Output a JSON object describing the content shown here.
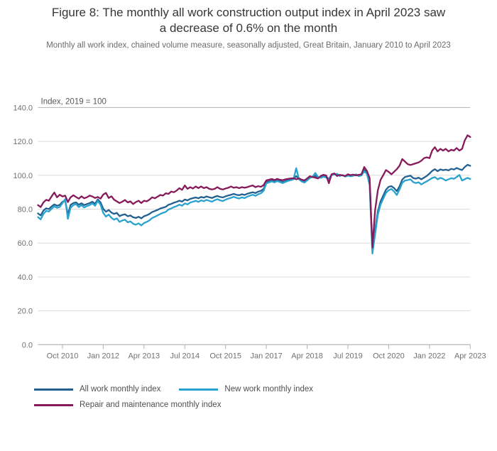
{
  "figure": {
    "title_lines": [
      "Figure 8: The monthly all work construction output index in April 2023 saw",
      "a decrease of 0.6% on the month"
    ],
    "subtitle": "Monthly all work index, chained volume measure, seasonally adjusted, Great Britain, January 2010 to April 2023"
  },
  "chart_data": {
    "type": "line",
    "title": "Figure 8: The monthly all work construction output index in April 2023 saw a decrease of 0.6% on the month",
    "subtitle": "Monthly all work index, chained volume measure, seasonally adjusted, Great Britain, January 2010 to April 2023",
    "y_axis_note": "Index, 2019 = 100",
    "ylim": [
      0,
      140
    ],
    "y_tick_step": 20,
    "y_tick_labels": [
      "0.0",
      "20.0",
      "40.0",
      "60.0",
      "80.0",
      "100.0",
      "120.0",
      "140.0"
    ],
    "grid": true,
    "legend_position": "bottom-left",
    "x_start": "Jan 2010",
    "x_end": "Apr 2023",
    "x_frequency": "monthly",
    "x_ticks": [
      {
        "label": "Oct 2010",
        "month_index": 9
      },
      {
        "label": "Jan 2012",
        "month_index": 24
      },
      {
        "label": "Apr 2013",
        "month_index": 39
      },
      {
        "label": "Jul 2014",
        "month_index": 54
      },
      {
        "label": "Oct 2015",
        "month_index": 69
      },
      {
        "label": "Jan 2017",
        "month_index": 84
      },
      {
        "label": "Apr 2018",
        "month_index": 99
      },
      {
        "label": "Jul 2019",
        "month_index": 114
      },
      {
        "label": "Oct 2020",
        "month_index": 129
      },
      {
        "label": "Jan 2022",
        "month_index": 144
      },
      {
        "label": "Apr 2023",
        "month_index": 159
      }
    ],
    "series": [
      {
        "name": "All work monthly index",
        "color": "#24608f",
        "values": [
          77.5,
          76.3,
          79.2,
          80.5,
          80.1,
          81.6,
          82.8,
          82.0,
          82.5,
          84.3,
          85.0,
          76.8,
          82.5,
          83.6,
          84.0,
          82.6,
          83.5,
          82.4,
          83.0,
          83.6,
          84.4,
          83.2,
          85.8,
          84.0,
          80.2,
          78.5,
          79.5,
          78.0,
          77.2,
          77.8,
          75.9,
          76.6,
          77.0,
          75.8,
          76.3,
          75.2,
          74.8,
          75.5,
          74.6,
          75.8,
          76.4,
          77.2,
          78.3,
          78.9,
          79.6,
          80.4,
          80.9,
          81.4,
          82.6,
          83.1,
          83.8,
          84.3,
          85.0,
          84.5,
          85.7,
          85.2,
          86.1,
          86.5,
          86.9,
          86.4,
          87.2,
          86.8,
          87.5,
          87.0,
          86.6,
          87.3,
          87.8,
          87.2,
          86.9,
          87.6,
          88.1,
          88.5,
          89.0,
          88.5,
          88.2,
          88.8,
          88.4,
          89.1,
          89.6,
          90.0,
          89.5,
          90.3,
          90.8,
          92.0,
          96.0,
          96.4,
          96.8,
          96.3,
          97.0,
          96.5,
          96.0,
          96.6,
          97.1,
          97.4,
          97.8,
          99.5,
          97.8,
          96.9,
          96.3,
          97.4,
          98.6,
          99.0,
          99.8,
          98.7,
          98.9,
          99.4,
          99.1,
          97.8,
          100.3,
          100.7,
          100.2,
          99.8,
          100.1,
          99.4,
          100.0,
          99.6,
          99.9,
          100.3,
          99.7,
          100.1,
          103.2,
          101.6,
          95.5,
          56.2,
          67.5,
          78.5,
          84.5,
          88.0,
          91.5,
          93.2,
          93.6,
          92.4,
          90.6,
          93.5,
          97.5,
          99.0,
          99.4,
          99.8,
          98.4,
          98.0,
          98.6,
          97.6,
          98.6,
          99.6,
          101.0,
          102.6,
          103.6,
          102.4,
          103.5,
          103.0,
          103.3,
          102.9,
          103.8,
          103.4,
          104.3,
          103.6,
          103.1,
          104.9,
          106.2,
          105.6
        ]
      },
      {
        "name": "New work monthly index",
        "color": "#29a2cf",
        "values": [
          75.3,
          74.0,
          77.2,
          79.0,
          78.6,
          80.2,
          81.6,
          80.8,
          81.3,
          83.6,
          85.9,
          74.3,
          80.8,
          82.4,
          83.0,
          81.2,
          82.4,
          81.0,
          81.8,
          82.4,
          83.4,
          82.0,
          84.9,
          82.6,
          77.8,
          75.6,
          76.8,
          74.9,
          73.8,
          74.6,
          72.5,
          73.3,
          73.8,
          72.2,
          72.8,
          71.4,
          70.8,
          71.6,
          70.4,
          71.8,
          72.5,
          73.4,
          74.8,
          75.5,
          76.3,
          77.2,
          77.8,
          78.4,
          79.8,
          80.4,
          81.2,
          81.8,
          82.7,
          82.0,
          83.4,
          82.8,
          83.9,
          84.4,
          84.9,
          84.3,
          85.2,
          84.7,
          85.5,
          84.9,
          84.4,
          85.3,
          85.9,
          85.2,
          84.8,
          85.6,
          86.2,
          86.7,
          87.3,
          86.7,
          86.3,
          87.0,
          86.5,
          87.4,
          88.0,
          88.5,
          87.9,
          88.8,
          89.4,
          90.8,
          95.2,
          95.8,
          96.4,
          95.8,
          96.6,
          96.0,
          95.4,
          96.1,
          96.7,
          97.1,
          97.6,
          104.2,
          97.6,
          96.4,
          95.7,
          97.0,
          98.4,
          99.1,
          101.4,
          99.0,
          98.5,
          99.1,
          98.7,
          97.3,
          100.1,
          100.5,
          100.9,
          99.6,
          100.2,
          99.2,
          99.8,
          99.4,
          99.7,
          100.6,
          99.5,
          99.9,
          102.3,
          100.9,
          94.2,
          53.8,
          65.2,
          76.6,
          82.6,
          86.2,
          89.6,
          91.2,
          91.9,
          90.4,
          88.4,
          91.6,
          95.6,
          96.9,
          97.2,
          97.6,
          96.0,
          95.4,
          95.9,
          94.6,
          95.6,
          96.4,
          97.4,
          98.4,
          98.9,
          97.6,
          98.5,
          97.9,
          96.9,
          97.6,
          98.3,
          97.9,
          99.0,
          100.2,
          96.9,
          97.7,
          98.5,
          97.8
        ]
      },
      {
        "name": "Repair and maintenance monthly index",
        "color": "#871a5b",
        "values": [
          82.4,
          81.2,
          84.0,
          85.5,
          85.0,
          87.5,
          89.8,
          87.0,
          88.5,
          87.5,
          88.0,
          84.2,
          87.0,
          88.2,
          87.2,
          86.2,
          87.6,
          86.4,
          87.0,
          88.0,
          87.5,
          86.6,
          87.2,
          86.2,
          88.6,
          89.6,
          86.6,
          87.6,
          85.6,
          84.6,
          83.6,
          84.4,
          85.4,
          84.0,
          84.6,
          83.0,
          84.2,
          85.0,
          83.6,
          85.0,
          84.6,
          85.6,
          87.0,
          86.4,
          87.4,
          88.4,
          88.0,
          89.4,
          89.0,
          90.4,
          90.0,
          91.0,
          92.4,
          91.4,
          94.0,
          92.0,
          93.0,
          92.2,
          93.4,
          92.4,
          93.4,
          92.4,
          93.0,
          92.0,
          91.6,
          92.0,
          93.0,
          92.0,
          91.6,
          92.2,
          92.6,
          93.4,
          92.6,
          93.0,
          92.4,
          93.0,
          92.6,
          93.0,
          93.6,
          94.0,
          93.0,
          93.6,
          93.2,
          94.2,
          97.0,
          97.4,
          97.8,
          97.2,
          97.9,
          97.3,
          97.1,
          97.6,
          97.9,
          98.1,
          98.3,
          97.6,
          98.2,
          97.4,
          97.0,
          98.1,
          99.4,
          99.0,
          98.6,
          98.1,
          99.6,
          100.3,
          99.9,
          95.3,
          100.6,
          101.1,
          99.6,
          100.3,
          99.9,
          99.6,
          100.6,
          100.1,
          100.4,
          99.9,
          100.3,
          100.6,
          104.9,
          102.6,
          98.4,
          57.4,
          79.2,
          91.0,
          97.2,
          100.1,
          103.1,
          102.0,
          100.6,
          102.1,
          103.6,
          105.6,
          109.6,
          108.1,
          106.6,
          106.1,
          106.6,
          107.1,
          107.6,
          108.6,
          110.1,
          110.6,
          110.1,
          114.6,
          116.6,
          114.1,
          115.6,
          114.6,
          115.6,
          114.1,
          115.1,
          114.6,
          116.1,
          114.6,
          115.6,
          120.6,
          123.6,
          122.6
        ]
      }
    ],
    "style": {
      "gridline_color": "#dcdcdc",
      "top_rule_color": "#b3b3b3",
      "baseline_color": "#a6a6a6",
      "tick_label_color": "#707070",
      "axis_note_color": "#595959"
    }
  }
}
